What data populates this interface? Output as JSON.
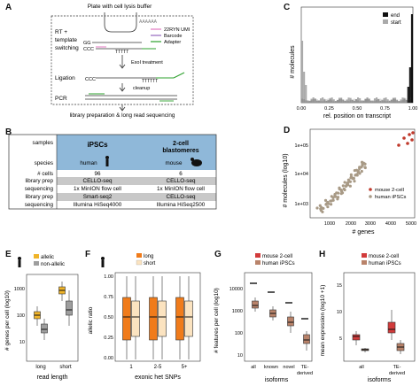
{
  "panels": {
    "A": {
      "letter": "A",
      "top_label": "Plate with cell lysis buffer",
      "step_rt": "RT +",
      "step_rt2": "template",
      "step_rt3": "switching",
      "step_ligation": "Ligation",
      "step_pcr": "PCR",
      "gg": "GG",
      "ccc": "CCC",
      "ccc2": "CCC",
      "polyA": "AAAAAA",
      "polyT": "TTTTT",
      "polyT2": "TTTTTT",
      "exo": "ExoI treatment",
      "cleanup": "cleanup",
      "bottom": "library preparation & long read sequencing",
      "legend": [
        "22RYN UMI",
        "Barcode",
        "Adapter"
      ],
      "legend_colors": [
        "#e377c2",
        "#9467bd",
        "#2ca02c"
      ]
    },
    "B": {
      "letter": "B",
      "col1": "iPSCs",
      "col2": "2-cell\nblastomeres",
      "rows": [
        {
          "label": "samples",
          "c1": "",
          "c2": ""
        },
        {
          "label": "species",
          "c1": "human",
          "c2": "mouse"
        },
        {
          "label": "# cells",
          "c1": "96",
          "c2": "6"
        },
        {
          "label": "library prep",
          "c1": "CELLO-seq",
          "c2": "CELLO-seq"
        },
        {
          "label": "sequencing",
          "c1": "1x MinION flow cell",
          "c2": "1x MinION flow cell"
        },
        {
          "label": "library prep",
          "c1": "Smart-seq2",
          "c2": "CELLO-seq"
        },
        {
          "label": "sequencing",
          "c1": "Illumina HiSeq4000",
          "c2": "Illumina HiSeq2500"
        }
      ]
    },
    "C": {
      "letter": "C",
      "ylabel": "# molecules",
      "xlabel": "rel. position on transcript",
      "xticks": [
        "0.00",
        "0.25",
        "0.50",
        "0.75",
        "1.00"
      ],
      "legend": [
        "end",
        "start"
      ]
    },
    "D": {
      "letter": "D",
      "ylabel": "# molecules (log10)",
      "xlabel": "# genes",
      "yticks": [
        "1e+03",
        "1e+04",
        "1e+05"
      ],
      "xticks": [
        "1000",
        "2000",
        "3000",
        "4000",
        "5000"
      ],
      "legend": [
        "mouse 2-cell",
        "human iPSCs"
      ]
    },
    "E": {
      "letter": "E",
      "ylabel": "# genes per cell (log10)",
      "xlabel": "read length",
      "xticks": [
        "long",
        "short"
      ],
      "legend": [
        "allelic",
        "non-allelic"
      ],
      "yticks": [
        "1000",
        "100",
        "10"
      ]
    },
    "F": {
      "letter": "F",
      "ylabel": "allelic ratio",
      "xlabel": "exonic het SNPs",
      "xticks": [
        "1",
        "2-5",
        "5+"
      ],
      "legend": [
        "long",
        "short"
      ],
      "yticks": [
        "1.00",
        "0.75",
        "0.50",
        "0.25",
        "0.00"
      ]
    },
    "G": {
      "letter": "G",
      "ylabel": "# features per cell (log10)",
      "xlabel": "isoforms",
      "xticks": [
        "all",
        "known",
        "novel",
        "TE-\nderived"
      ],
      "legend": [
        "mouse 2-cell",
        "human iPSCs"
      ],
      "yticks": [
        "10000",
        "1000",
        "100",
        "10"
      ]
    },
    "H": {
      "letter": "H",
      "ylabel": "mean expression (log10 +1)",
      "xlabel": "isoforms",
      "xticks": [
        "all",
        "TE-\nderived"
      ],
      "legend": [
        "mouse 2-cell",
        "human iPSCs"
      ],
      "yticks": [
        "15",
        "10",
        "5"
      ]
    }
  },
  "colors": {
    "mouse": "#c0392b",
    "human": "#a89a86",
    "allelic": "#f0b429",
    "nonallelic": "#9e9e9e",
    "long": "#f07b1a",
    "short": "#fbe3c0",
    "gmouse": "#d23b3b",
    "ghuman": "#b9836a",
    "header": "#8fb8d9"
  }
}
